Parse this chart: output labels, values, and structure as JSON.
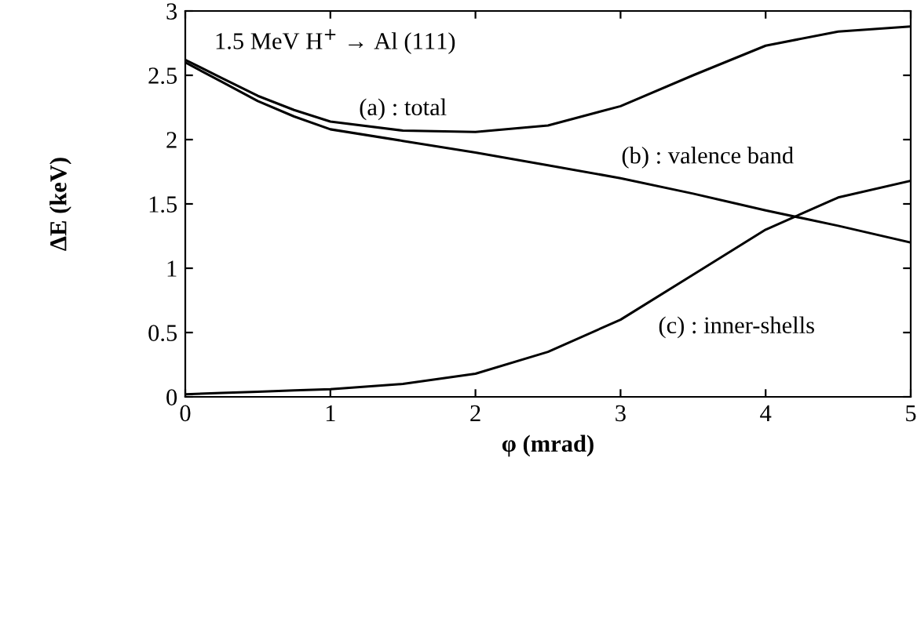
{
  "chart_data": {
    "type": "line",
    "xlabel": "φ (mrad)",
    "ylabel": "ΔE (keV)",
    "x": [
      0,
      0.25,
      0.5,
      0.75,
      1,
      1.5,
      2,
      2.5,
      3,
      3.5,
      4,
      4.5,
      5
    ],
    "series": [
      {
        "color": "#000000",
        "values": [
          2.62,
          2.48,
          2.34,
          2.23,
          2.14,
          2.07,
          2.06,
          2.11,
          2.26,
          2.5,
          2.73,
          2.84,
          2.88
        ]
      },
      {
        "color": "#000000",
        "values": [
          2.6,
          2.45,
          2.3,
          2.18,
          2.08,
          1.99,
          1.9,
          1.8,
          1.7,
          1.58,
          1.45,
          1.33,
          1.2
        ]
      },
      {
        "color": "#000000",
        "values": [
          0.02,
          0.03,
          0.04,
          0.05,
          0.06,
          0.1,
          0.18,
          0.35,
          0.6,
          0.95,
          1.3,
          1.55,
          1.68
        ]
      }
    ],
    "annotations": [
      "1.5 MeV H$^{+}$ → Al (111)",
      "(a) : total",
      "(b) : valence band",
      "(c) : inner-shells"
    ],
    "xlim": [
      0,
      5
    ],
    "ylim": [
      0,
      3
    ],
    "xticks": [
      0,
      1,
      2,
      3,
      4,
      5
    ],
    "yticks": [
      0,
      0.5,
      1,
      1.5,
      2,
      2.5,
      3
    ],
    "grid": false,
    "legend": false,
    "marker": "none",
    "line_style": "solid"
  }
}
